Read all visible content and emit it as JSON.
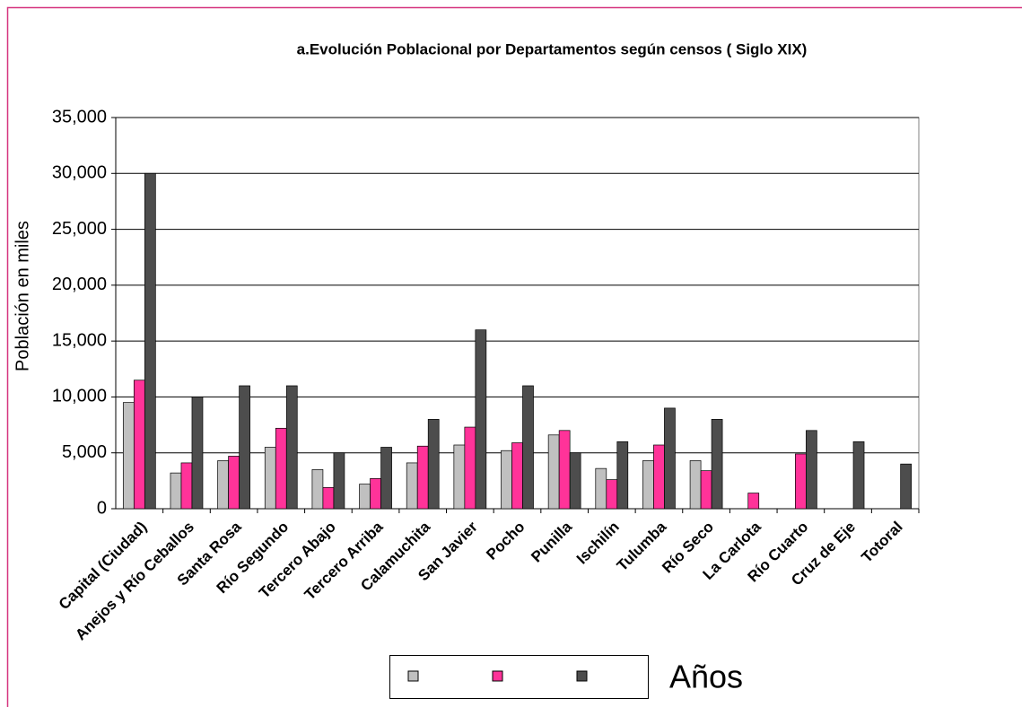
{
  "chart_data": {
    "type": "bar",
    "title": "a.Evolución Poblacional por Departamentos según censos ( Siglo XIX)",
    "y_label": "Población en miles",
    "legend_title": "Años",
    "categories": [
      "Capital (Ciudad)",
      "Anejos y Río Ceballos",
      "Santa Rosa",
      "Río Segundo",
      "Tercero Abajo",
      "Tercero Arriba",
      "Calamuchita",
      "San Javier",
      "Pocho",
      "Punilla",
      "Ischilín",
      "Tulumba",
      "Río Seco",
      "La Carlota",
      "Río Cuarto",
      "Cruz de Eje",
      "Totoral"
    ],
    "series": [
      {
        "color": "#c0c0c0",
        "values": [
          9500,
          3200,
          4300,
          5500,
          3500,
          2200,
          4100,
          5700,
          5200,
          6600,
          3600,
          4300,
          4300,
          null,
          null,
          null,
          null
        ]
      },
      {
        "color": "#ff3399",
        "values": [
          11500,
          4100,
          4700,
          7200,
          1900,
          2700,
          5600,
          7300,
          5900,
          7000,
          2600,
          5700,
          3400,
          1400,
          4900,
          null,
          null
        ]
      },
      {
        "color": "#4d4d4d",
        "values": [
          30000,
          10000,
          11000,
          11000,
          5000,
          5500,
          8000,
          16000,
          11000,
          5000,
          6000,
          9000,
          8000,
          null,
          7000,
          6000,
          4000
        ]
      }
    ],
    "ylim": [
      0,
      35000
    ],
    "yticks": [
      0,
      {
        "value": 5000,
        "label": "5,000"
      },
      {
        "value": 10000,
        "label": "10,000"
      },
      {
        "value": 15000,
        "label": "15,000"
      },
      {
        "value": 20000,
        "label": "20,000"
      },
      {
        "value": 25000,
        "label": "25,000"
      },
      {
        "value": 30000,
        "label": "30,000"
      },
      {
        "value": 35000,
        "label": "35,000"
      }
    ],
    "grid": true
  }
}
